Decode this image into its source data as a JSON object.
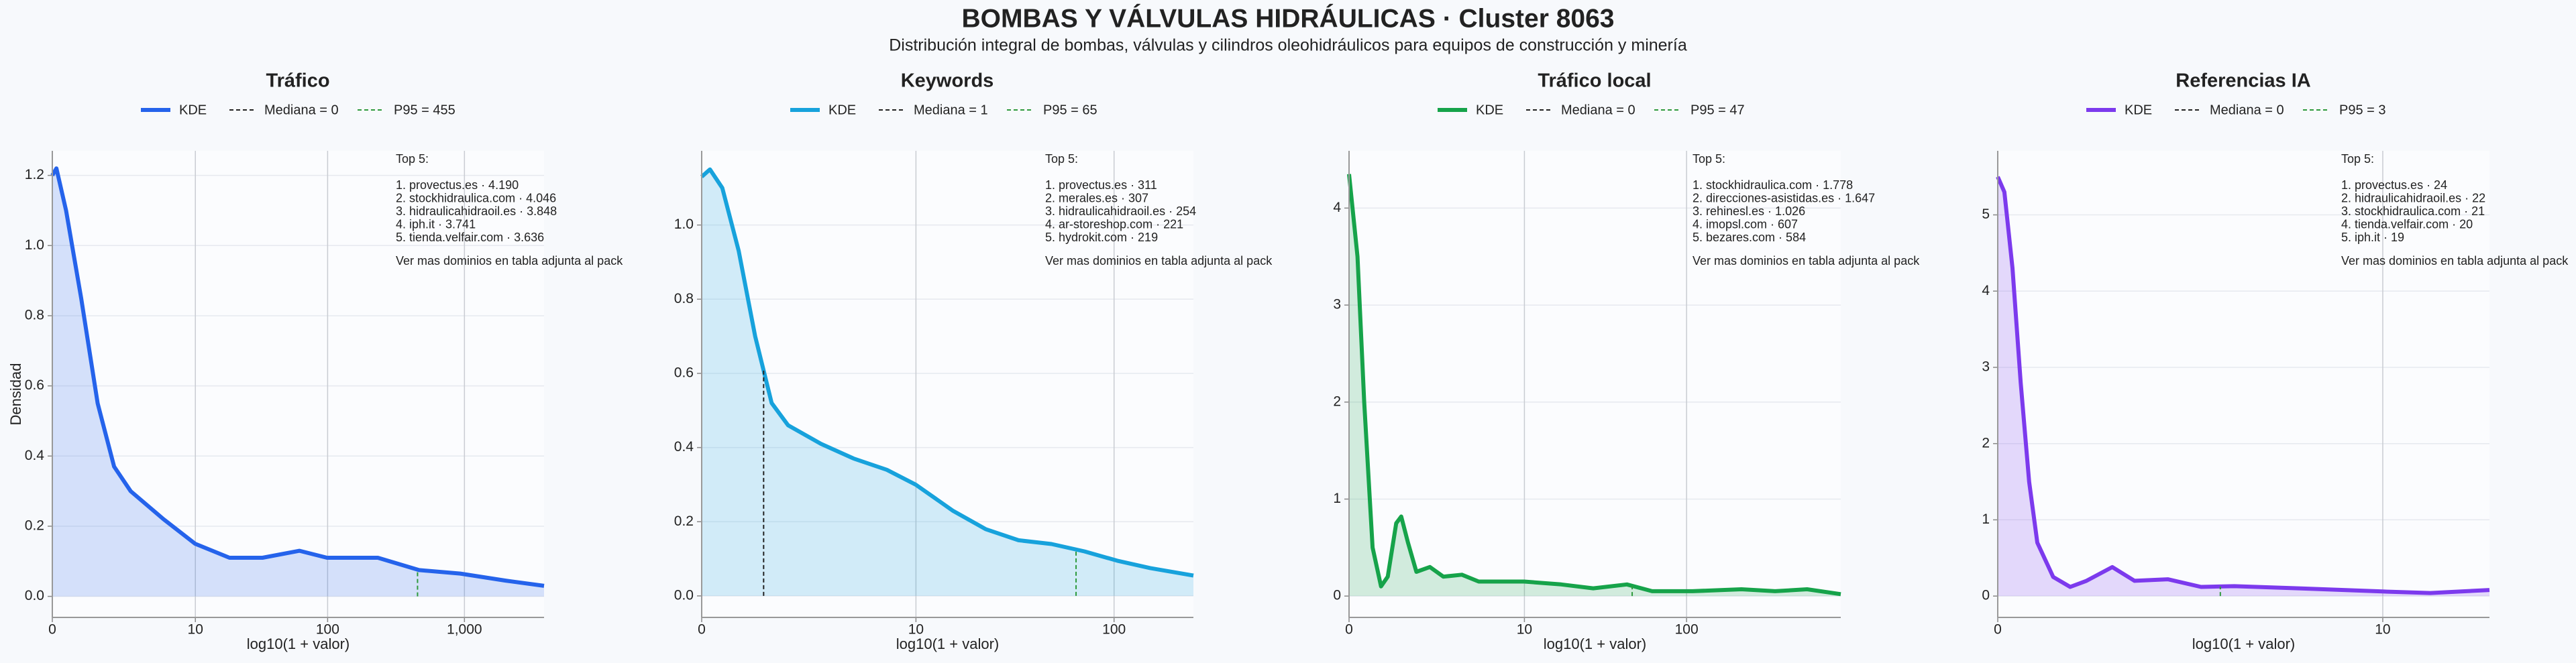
{
  "title": "BOMBAS Y VÁLVULAS HIDRÁULICAS · Cluster 8063",
  "subtitle": "Distribución integral de bombas, válvulas y cilindros oleohidráulicos para equipos de construcción y minería",
  "chart_data": [
    {
      "type": "area",
      "title": "Tráfico",
      "xlabel": "log10(1 + valor)",
      "ylabel": "Densidad",
      "grid": true,
      "x": [
        0,
        0.03,
        0.1,
        0.21,
        0.33,
        0.45,
        0.57,
        0.81,
        1.04,
        1.29,
        1.53,
        1.8,
        2.0,
        2.37,
        2.67,
        2.97,
        3.3,
        3.58
      ],
      "series": [
        {
          "name": "KDE",
          "color": "#2563eb",
          "values": [
            1.2,
            1.22,
            1.1,
            0.85,
            0.55,
            0.37,
            0.3,
            0.22,
            0.15,
            0.11,
            0.11,
            0.13,
            0.11,
            0.11,
            0.075,
            0.065,
            0.045,
            0.03
          ]
        }
      ],
      "median": 0,
      "median_label": "Mediana = 0",
      "p95": 455,
      "p95_label": "P95 = 455",
      "xlim": [
        0,
        3.58
      ],
      "xticks": [
        0,
        {
          "value": 1.0414,
          "label": "10"
        },
        {
          "value": 2.0043,
          "label": "100"
        },
        {
          "value": 3.0004,
          "label": "1,000"
        }
      ],
      "ylim": [
        -0.06,
        1.27
      ],
      "yticks": [
        {
          "value": 0,
          "label": "0.0"
        },
        0.2,
        0.4,
        0.6,
        0.8,
        {
          "value": 1,
          "label": "1.0"
        },
        1.2
      ],
      "annotation": {
        "heading": "Top 5:",
        "items": [
          "1. provectus.es · 4.190",
          "2. stockhidraulica.com · 4.046",
          "3. hidraulicahidraoil.es · 3.848",
          "4. iph.it · 3.741",
          "5. tienda.velfair.com · 3.636"
        ],
        "footer": "Ver mas dominios en tabla adjunta al pack"
      }
    },
    {
      "type": "area",
      "title": "Keywords",
      "xlabel": "log10(1 + valor)",
      "grid": true,
      "x": [
        0,
        0.04,
        0.1,
        0.18,
        0.26,
        0.34,
        0.42,
        0.58,
        0.74,
        0.9,
        1.04,
        1.22,
        1.38,
        1.54,
        1.7,
        1.86,
        2.02,
        2.18,
        2.39
      ],
      "series": [
        {
          "name": "KDE",
          "color": "#17a2dc",
          "values": [
            1.13,
            1.15,
            1.1,
            0.93,
            0.7,
            0.52,
            0.46,
            0.41,
            0.37,
            0.34,
            0.3,
            0.23,
            0.18,
            0.15,
            0.14,
            0.12,
            0.095,
            0.075,
            0.055
          ]
        }
      ],
      "median": 1,
      "median_label": "Mediana = 1",
      "p95": 65,
      "p95_label": "P95 = 65",
      "xlim": [
        0,
        2.39
      ],
      "xticks": [
        0,
        {
          "value": 1.0414,
          "label": "10"
        },
        {
          "value": 2.0043,
          "label": "100"
        }
      ],
      "ylim": [
        -0.058,
        1.2
      ],
      "yticks": [
        {
          "value": 0,
          "label": "0.0"
        },
        0.2,
        0.4,
        0.6,
        0.8,
        {
          "value": 1,
          "label": "1.0"
        }
      ],
      "annotation": {
        "heading": "Top 5:",
        "items": [
          "1. provectus.es · 311",
          "2. merales.es · 307",
          "3. hidraulicahidraoil.es · 254",
          "4. ar-storeshop.com · 221",
          "5. hydrokit.com · 219"
        ],
        "footer": "Ver mas dominios en tabla adjunta al pack"
      }
    },
    {
      "type": "area",
      "title": "Tráfico local",
      "xlabel": "log10(1 + valor)",
      "grid": true,
      "x": [
        0,
        0.05,
        0.09,
        0.14,
        0.19,
        0.23,
        0.28,
        0.31,
        0.35,
        0.4,
        0.48,
        0.56,
        0.67,
        0.77,
        1.04,
        1.26,
        1.45,
        1.65,
        1.8,
        2.04,
        2.33,
        2.53,
        2.72,
        2.92
      ],
      "series": [
        {
          "name": "KDE",
          "color": "#16a34a",
          "values": [
            4.35,
            3.5,
            2,
            0.5,
            0.1,
            0.2,
            0.75,
            0.82,
            0.55,
            0.25,
            0.3,
            0.2,
            0.22,
            0.15,
            0.15,
            0.12,
            0.08,
            0.12,
            0.05,
            0.05,
            0.07,
            0.05,
            0.07,
            0.02
          ]
        }
      ],
      "median": 0,
      "median_label": "Mediana = 0",
      "p95": 47,
      "p95_label": "P95 = 47",
      "xlim": [
        0,
        2.92
      ],
      "xticks": [
        0,
        {
          "value": 1.0414,
          "label": "10"
        },
        {
          "value": 2.0043,
          "label": "100"
        }
      ],
      "ylim": [
        -0.22,
        4.59
      ],
      "yticks": [
        0,
        1,
        2,
        3,
        4
      ],
      "annotation": {
        "heading": "Top 5:",
        "items": [
          "1. stockhidraulica.com · 1.778",
          "2. direcciones-asistidas.es · 1.647",
          "3. rehinesl.es · 1.026",
          "4. imopsl.com · 607",
          "5. bezares.com · 584"
        ],
        "footer": "Ver mas dominios en tabla adjunta al pack"
      }
    },
    {
      "type": "area",
      "title": "Referencias IA",
      "xlabel": "log10(1 + valor)",
      "grid": true,
      "x": [
        0,
        0.018,
        0.04,
        0.062,
        0.085,
        0.107,
        0.15,
        0.196,
        0.24,
        0.31,
        0.37,
        0.46,
        0.55,
        0.64,
        0.82,
        1.04,
        1.17,
        1.33
      ],
      "series": [
        {
          "name": "KDE",
          "color": "#7c3aed",
          "values": [
            5.5,
            5.3,
            4.3,
            2.8,
            1.5,
            0.7,
            0.25,
            0.12,
            0.2,
            0.38,
            0.2,
            0.22,
            0.12,
            0.13,
            0.1,
            0.06,
            0.04,
            0.08
          ]
        }
      ],
      "median": 0,
      "median_label": "Mediana = 0",
      "p95": 3,
      "p95_label": "P95 = 3",
      "xlim": [
        0,
        1.33
      ],
      "xticks": [
        0,
        {
          "value": 1.0414,
          "label": "10"
        }
      ],
      "ylim": [
        -0.28,
        5.84
      ],
      "yticks": [
        0,
        1,
        2,
        3,
        4,
        5
      ],
      "annotation": {
        "heading": "Top 5:",
        "items": [
          "1. provectus.es · 24",
          "2. hidraulicahidraoil.es · 22",
          "3. stockhidraulica.com · 21",
          "4. tienda.velfair.com · 20",
          "5. iph.it · 19"
        ],
        "footer": "Ver mas dominios en tabla adjunta al pack"
      }
    }
  ]
}
